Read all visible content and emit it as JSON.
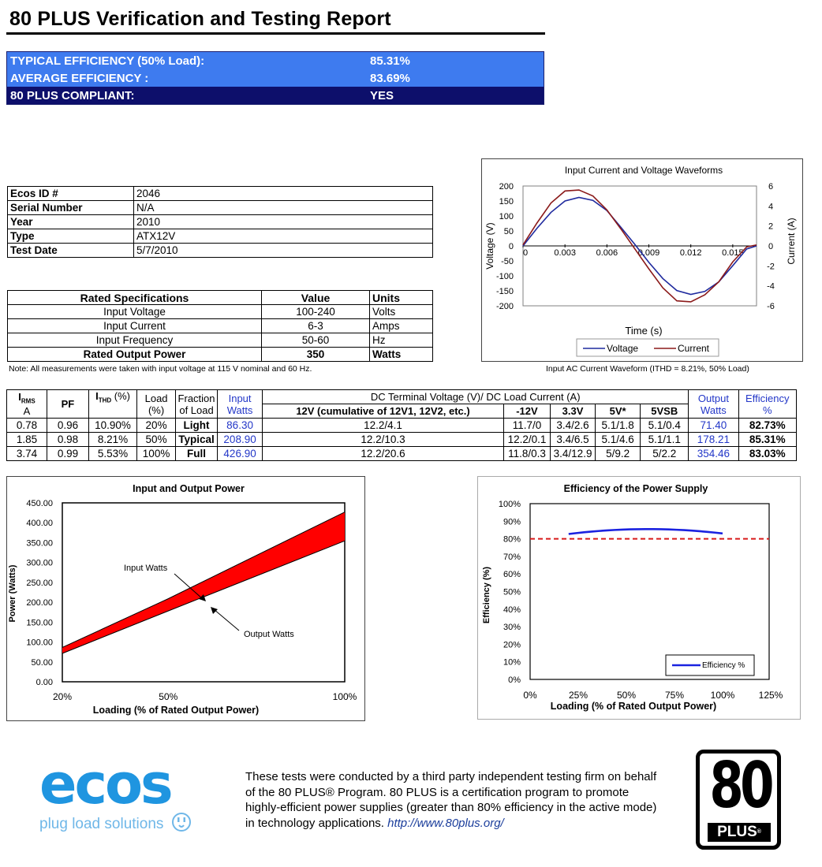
{
  "page_title": "80 PLUS Verification and Testing Report",
  "summary": {
    "typical_label": "TYPICAL EFFICIENCY (50% Load):",
    "typical_value": "85.31%",
    "average_label": "AVERAGE EFFICIENCY :",
    "average_value": "83.69%",
    "compliant_label": "80 PLUS COMPLIANT:",
    "compliant_value": "YES"
  },
  "info": [
    {
      "label": "Ecos ID #",
      "value": "2046"
    },
    {
      "label": "Serial Number",
      "value": "N/A"
    },
    {
      "label": "Year",
      "value": "2010"
    },
    {
      "label": "Type",
      "value": "ATX12V"
    },
    {
      "label": "Test Date",
      "value": "5/7/2010"
    }
  ],
  "specs": {
    "header": [
      "Rated Specifications",
      "Value",
      "Units"
    ],
    "rows": [
      [
        "Input Voltage",
        "100-240",
        "Volts"
      ],
      [
        "Input Current",
        "6-3",
        "Amps"
      ],
      [
        "Input Frequency",
        "50-60",
        "Hz"
      ],
      [
        "Rated Output Power",
        "350",
        "Watts"
      ]
    ]
  },
  "note": "Note: All measurements were taken with input voltage at 115 V nominal and 60 Hz.",
  "waveform": {
    "title": "Input Current and Voltage Waveforms",
    "xlabel": "Time (s)",
    "ylabel_left": "Voltage (V)",
    "ylabel_right": "Current (A)",
    "left_ticks": [
      "200",
      "150",
      "100",
      "50",
      "0",
      "-50",
      "-100",
      "-150",
      "-200"
    ],
    "right_ticks": [
      "6",
      "4",
      "2",
      "0",
      "-2",
      "-4",
      "-6"
    ],
    "x_ticks": [
      "0",
      "0.003",
      "0.006",
      "0.009",
      "0.012",
      "0.015"
    ],
    "legend_voltage": "Voltage",
    "legend_current": "Current",
    "caption": "Input AC Current Waveform (ITHD = 8.21%, 50% Load)",
    "voltage_color": "#1f2a9e",
    "current_color": "#8b1a1a"
  },
  "results": {
    "headers": {
      "irms": "I",
      "irms_sub": "RMS",
      "irms_unit": "A",
      "pf": "PF",
      "ithd": "I",
      "ithd_sub": "THD",
      "ithd_unit": "(%)",
      "load": "Load",
      "load_unit": "(%)",
      "fraction": "Fraction",
      "fraction2": "of Load",
      "input": "Input",
      "input2": "Watts",
      "dc": "DC Terminal Voltage (V)/ DC Load Current (A)",
      "v12": "12V (cumulative of 12V1, 12V2, etc.)",
      "vm12": "-12V",
      "v33": "3.3V",
      "v5": "5V*",
      "v5sb": "5VSB",
      "output": "Output",
      "output2": "Watts",
      "eff": "Efficiency",
      "eff2": "%"
    },
    "rows": [
      {
        "irms": "0.78",
        "pf": "0.96",
        "ithd": "10.90%",
        "load": "20%",
        "fraction": "Light",
        "input": "86.30",
        "v12": "12.2/4.1",
        "vm12": "11.7/0",
        "v33": "3.4/2.6",
        "v5": "5.1/1.8",
        "v5sb": "5.1/0.4",
        "output": "71.40",
        "eff": "82.73%"
      },
      {
        "irms": "1.85",
        "pf": "0.98",
        "ithd": "8.21%",
        "load": "50%",
        "fraction": "Typical",
        "input": "208.90",
        "v12": "12.2/10.3",
        "vm12": "12.2/0.1",
        "v33": "3.4/6.5",
        "v5": "5.1/4.6",
        "v5sb": "5.1/1.1",
        "output": "178.21",
        "eff": "85.31%"
      },
      {
        "irms": "3.74",
        "pf": "0.99",
        "ithd": "5.53%",
        "load": "100%",
        "fraction": "Full",
        "input": "426.90",
        "v12": "12.2/20.6",
        "vm12": "11.8/0.3",
        "v33": "3.4/12.9",
        "v5": "5/9.2",
        "v5sb": "5/2.2",
        "output": "354.46",
        "eff": "83.03%"
      }
    ]
  },
  "chart_data": [
    {
      "type": "line",
      "title": "Input Current and Voltage Waveforms",
      "xlabel": "Time (s)",
      "ylabel": "Voltage (V)",
      "y2label": "Current (A)",
      "xlim": [
        0,
        0.0167
      ],
      "ylim": [
        -200,
        200
      ],
      "y2lim": [
        -6,
        6
      ],
      "series": [
        {
          "name": "Voltage",
          "x": [
            0,
            0.001,
            0.002,
            0.003,
            0.004,
            0.005,
            0.006,
            0.007,
            0.008,
            0.009,
            0.01,
            0.011,
            0.012,
            0.013,
            0.014,
            0.015,
            0.016,
            0.0167
          ],
          "values": [
            0,
            59,
            112,
            150,
            162,
            152,
            118,
            62,
            5,
            -55,
            -109,
            -149,
            -162,
            -152,
            -120,
            -66,
            -10,
            0
          ]
        },
        {
          "name": "Current",
          "axis": "right",
          "x": [
            0,
            0.001,
            0.002,
            0.003,
            0.004,
            0.005,
            0.006,
            0.007,
            0.008,
            0.009,
            0.01,
            0.011,
            0.012,
            0.013,
            0.014,
            0.015,
            0.016,
            0.0167
          ],
          "values": [
            0.1,
            2.3,
            4.3,
            5.5,
            5.6,
            5.0,
            3.6,
            1.7,
            -0.3,
            -2.3,
            -4.2,
            -5.5,
            -5.6,
            -4.9,
            -3.6,
            -1.6,
            -0.1,
            0.1
          ]
        }
      ],
      "legend": "bottom"
    },
    {
      "type": "area",
      "title": "Input and Output Power",
      "xlabel": "Loading (% of Rated Output Power)",
      "ylabel": "Power (Watts)",
      "categories": [
        "20%",
        "50%",
        "100%"
      ],
      "x": [
        20,
        50,
        100
      ],
      "ylim": [
        0,
        450
      ],
      "y_ticks": [
        "0.00",
        "50.00",
        "100.00",
        "150.00",
        "200.00",
        "250.00",
        "300.00",
        "350.00",
        "400.00",
        "450.00"
      ],
      "series": [
        {
          "name": "Input Watts",
          "values": [
            86.3,
            208.9,
            426.9
          ]
        },
        {
          "name": "Output Watts",
          "values": [
            71.4,
            178.21,
            354.46
          ]
        }
      ],
      "annotations": [
        "Input Watts",
        "Output Watts"
      ],
      "fill_color": "#ff0000"
    },
    {
      "type": "line",
      "title": "Efficiency of the Power Supply",
      "xlabel": "Loading (% of Rated Output Power)",
      "ylabel": "Efficiency (%)",
      "x_ticks": [
        "0%",
        "25%",
        "50%",
        "75%",
        "100%",
        "125%"
      ],
      "y_ticks": [
        "0%",
        "10%",
        "20%",
        "30%",
        "40%",
        "50%",
        "60%",
        "70%",
        "80%",
        "90%",
        "100%"
      ],
      "xlim": [
        0,
        125
      ],
      "ylim": [
        0,
        100
      ],
      "series": [
        {
          "name": "Efficiency %",
          "x": [
            20,
            50,
            100
          ],
          "values": [
            82.73,
            85.31,
            83.03
          ]
        }
      ],
      "threshold": 80,
      "legend": "bottom-right",
      "line_color": "#1a22e0",
      "threshold_color": "#d81a1a"
    }
  ],
  "footer": {
    "logo_text": "ecos",
    "logo_tagline": "plug load solutions",
    "text": "These tests were conducted by a third party independent testing firm on behalf of the 80 PLUS® Program. 80 PLUS is a certification program to promote highly-efficient power supplies (greater than 80% efficiency in the active mode) in technology applications.",
    "link": "http://www.80plus.org/",
    "badge_number": "80",
    "badge_word": "PLUS",
    "badge_reg": "®"
  },
  "colors": {
    "summary_blue": "#3e7bef",
    "summary_dark": "#0d0f6b",
    "ecos_blue": "#1f95e0",
    "link_blue": "#1a3d9b"
  }
}
